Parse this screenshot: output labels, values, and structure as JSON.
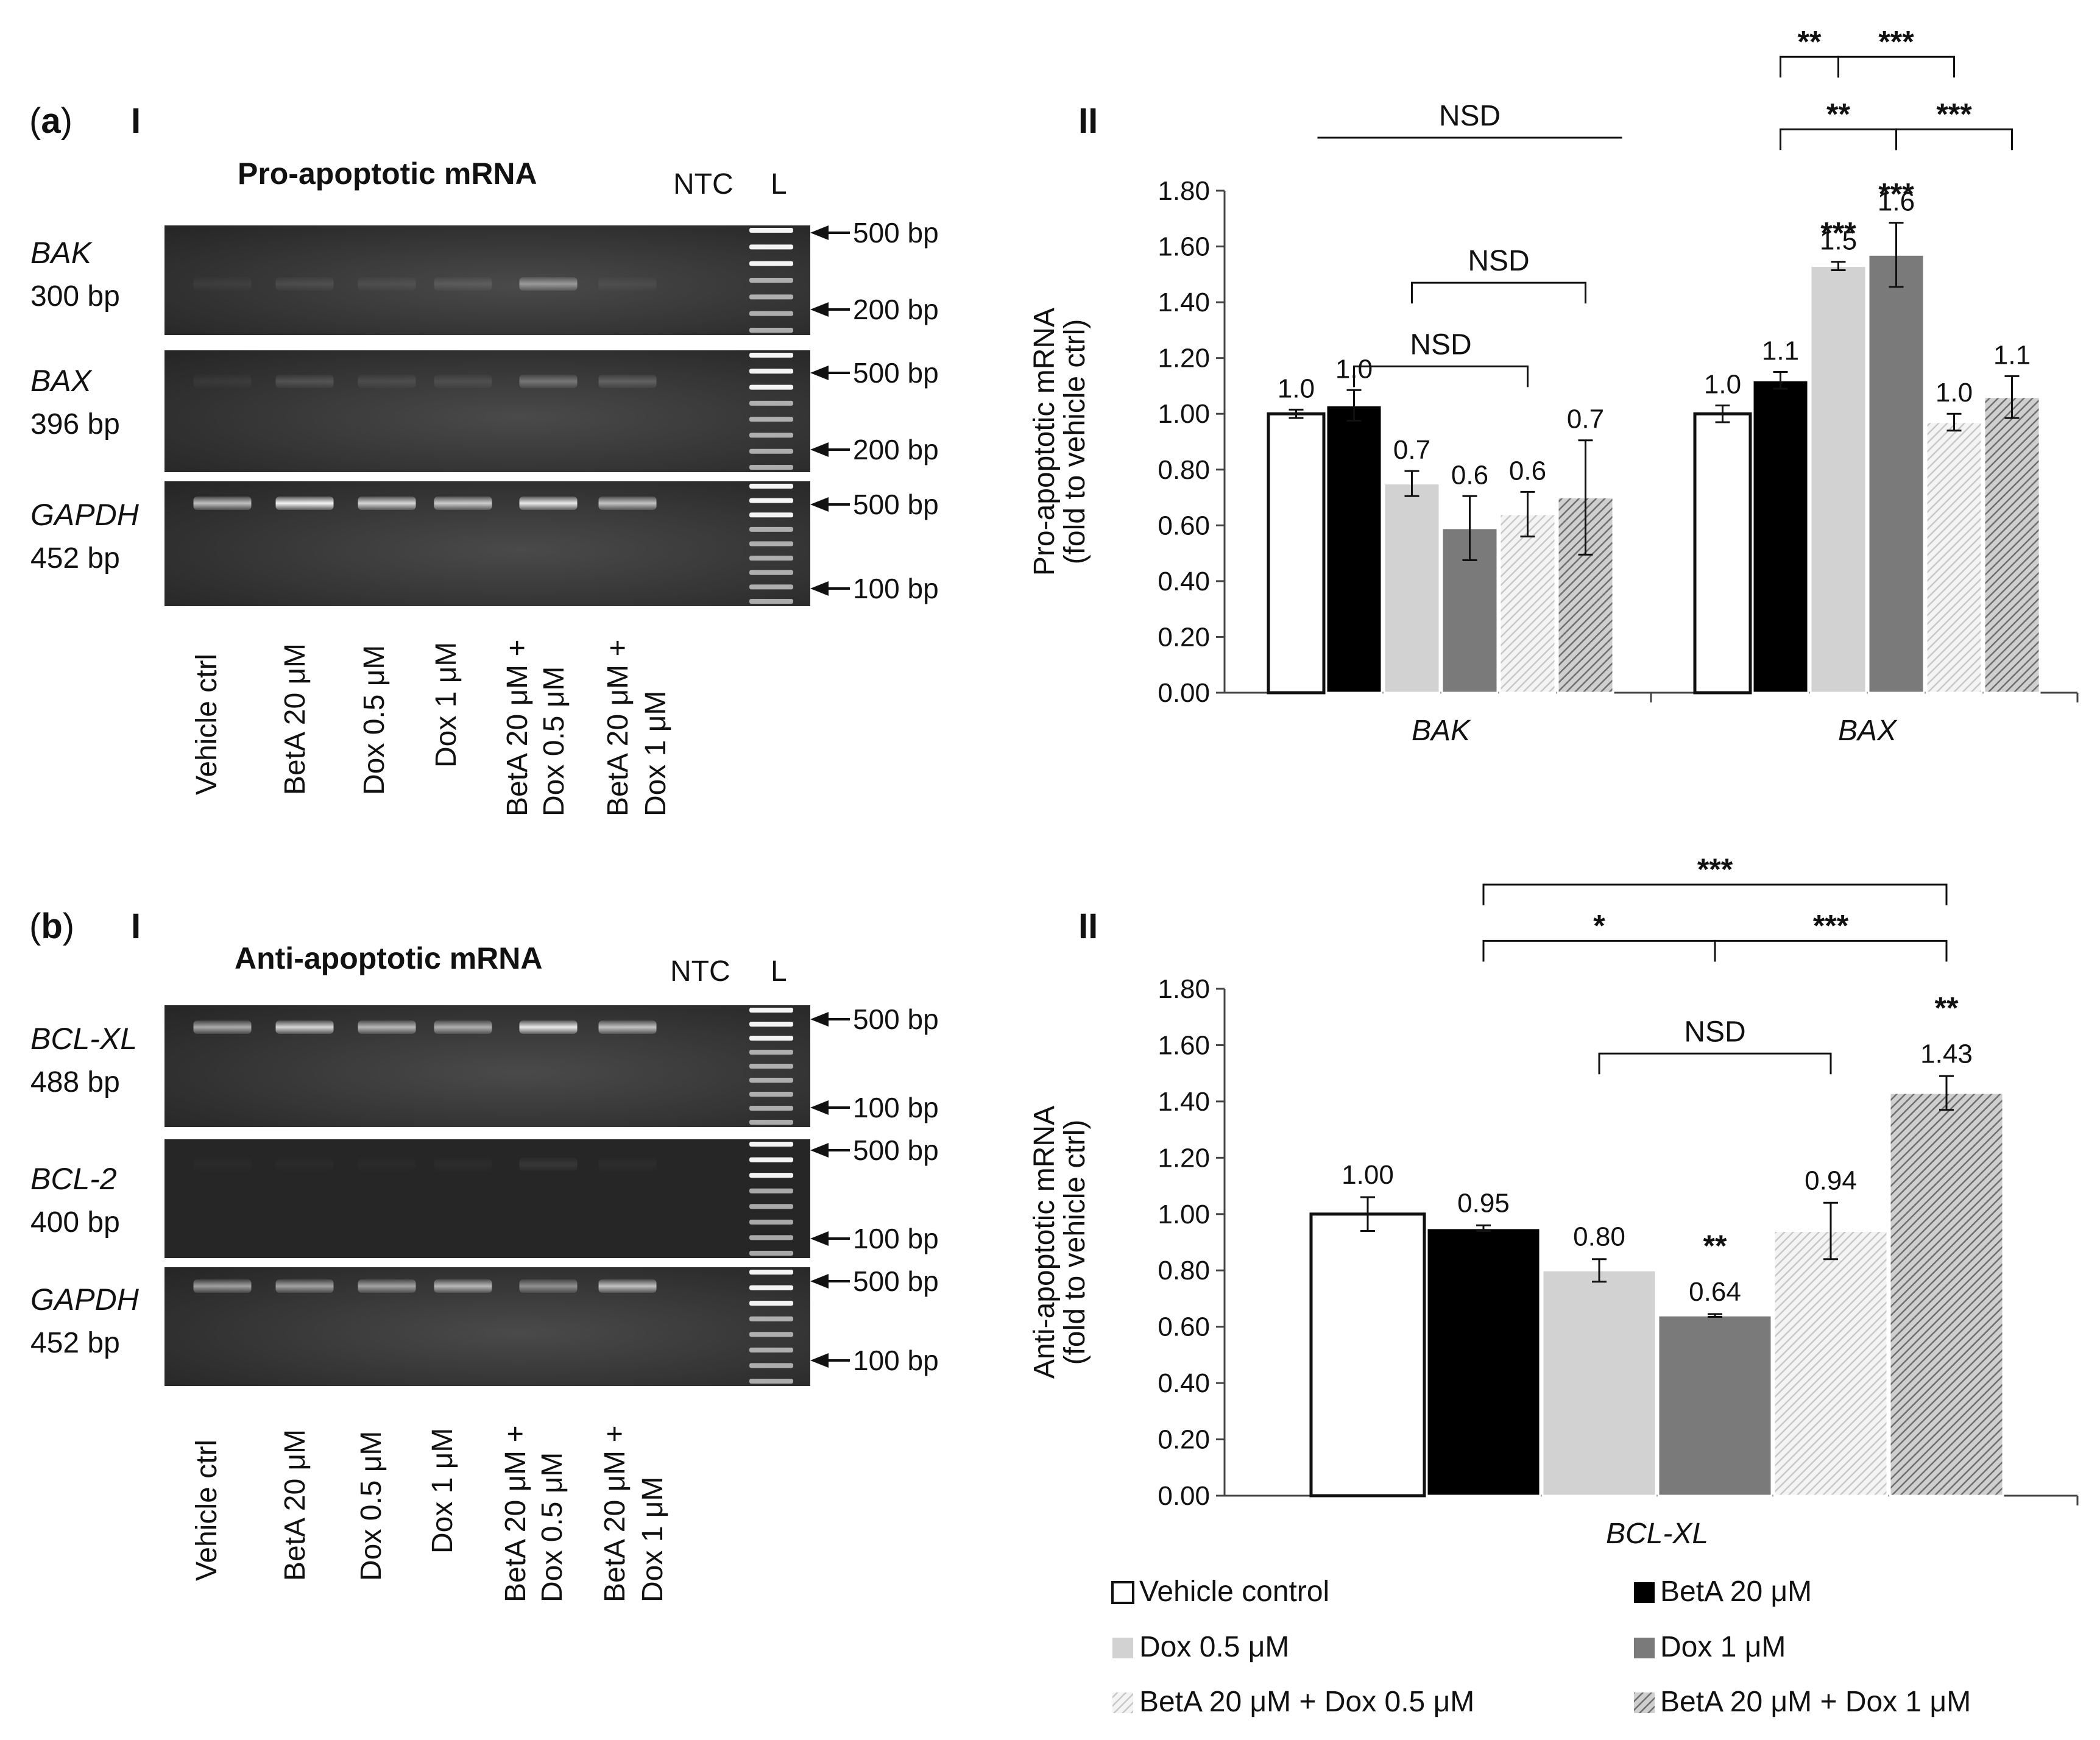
{
  "panel_a": {
    "letter": "a",
    "roman_left": "I",
    "roman_right": "II",
    "gel_title": "Pro-apoptotic mRNA",
    "ntc": "NTC",
    "ladder": "L",
    "gel_rows": [
      {
        "gene": "BAK",
        "size": "300 bp",
        "marker_top": "500 bp",
        "marker_bottom": "200 bp"
      },
      {
        "gene": "BAX",
        "size": "396 bp",
        "marker_top": "500 bp",
        "marker_bottom": "200 bp"
      },
      {
        "gene": "GAPDH",
        "size": "452 bp",
        "marker_top": "500 bp",
        "marker_bottom": "100 bp"
      }
    ],
    "lanes": [
      [
        "Vehicle ctrl"
      ],
      [
        "BetA 20 μM"
      ],
      [
        "Dox 0.5 μM"
      ],
      [
        "Dox 1 μM"
      ],
      [
        "BetA 20 μM +",
        "Dox 0.5 μM"
      ],
      [
        "BetA 20 μM +",
        "Dox 1 μM"
      ]
    ],
    "band_intensity": {
      "BAK": [
        0.05,
        0.1,
        0.08,
        0.12,
        0.45,
        0.06
      ],
      "BAX": [
        0.05,
        0.15,
        0.1,
        0.1,
        0.3,
        0.2
      ],
      "GAPDH": [
        0.7,
        0.95,
        0.8,
        0.75,
        0.9,
        0.7
      ]
    }
  },
  "panel_b": {
    "letter": "b",
    "roman_left": "I",
    "roman_right": "II",
    "gel_title": "Anti-apoptotic mRNA",
    "ntc": "NTC",
    "ladder": "L",
    "gel_rows": [
      {
        "gene": "BCL-XL",
        "size": "488 bp",
        "marker_top": "500 bp",
        "marker_bottom": "100 bp"
      },
      {
        "gene": "BCL-2",
        "size": "400 bp",
        "marker_top": "500 bp",
        "marker_bottom": "100 bp"
      },
      {
        "gene": "GAPDH",
        "size": "452 bp",
        "marker_top": "500 bp",
        "marker_bottom": "100 bp"
      }
    ],
    "lanes": [
      [
        "Vehicle ctrl"
      ],
      [
        "BetA 20 μM"
      ],
      [
        "Dox 0.5 μM"
      ],
      [
        "Dox 1 μM"
      ],
      [
        "BetA 20 μM +",
        "Dox 0.5 μM"
      ],
      [
        "BetA 20 μM +",
        "Dox 1 μM"
      ]
    ],
    "band_intensity": {
      "BCL-XL": [
        0.6,
        0.8,
        0.65,
        0.6,
        0.9,
        0.7
      ],
      "BCL-2": [
        0.02,
        0.02,
        0.02,
        0.03,
        0.08,
        0.03
      ],
      "GAPDH": [
        0.55,
        0.55,
        0.55,
        0.65,
        0.45,
        0.7
      ]
    }
  },
  "legend": [
    {
      "label": "Vehicle control",
      "fill": "#ffffff",
      "pattern": "none"
    },
    {
      "label": "BetA 20 μM",
      "fill": "#000000",
      "pattern": "none"
    },
    {
      "label": "Dox 0.5 μM",
      "fill": "#d2d2d2",
      "pattern": "none"
    },
    {
      "label": "Dox 1 μM",
      "fill": "#7a7a7a",
      "pattern": "none"
    },
    {
      "label": "BetA 20 μM + Dox 0.5 μM",
      "fill": "#ececec",
      "pattern": "light-hatch"
    },
    {
      "label": "BetA 20 μM + Dox 1 μM",
      "fill": "#9a9a9a",
      "pattern": "dark-hatch"
    }
  ],
  "chart_data": [
    {
      "type": "bar",
      "ylabel": "Pro-apoptotic mRNA (fold to vehicle ctrl)",
      "ylabel_lines": [
        "Pro-apoptotic mRNA",
        "(fold to vehicle ctrl)"
      ],
      "ylim": [
        0,
        1.8
      ],
      "yticks": [
        "0.00",
        "0.20",
        "0.40",
        "0.60",
        "0.80",
        "1.00",
        "1.20",
        "1.40",
        "1.60",
        "1.80"
      ],
      "categories": [
        "BAK",
        "BAX"
      ],
      "series": [
        {
          "name": "Vehicle control",
          "values": [
            1.0,
            1.0
          ],
          "errors": [
            0.015,
            0.03
          ],
          "labels": [
            "1.0",
            "1.0"
          ]
        },
        {
          "name": "BetA 20 μM",
          "values": [
            1.03,
            1.12
          ],
          "errors": [
            0.055,
            0.03
          ],
          "labels": [
            "1.0",
            "1.1"
          ]
        },
        {
          "name": "Dox 0.5 μM",
          "values": [
            0.75,
            1.53
          ],
          "errors": [
            0.045,
            0.015
          ],
          "labels": [
            "0.7",
            "1.5"
          ]
        },
        {
          "name": "Dox 1 μM",
          "values": [
            0.59,
            1.57
          ],
          "errors": [
            0.115,
            0.115
          ],
          "labels": [
            "0.6",
            "1.6"
          ]
        },
        {
          "name": "BetA 20 μM + Dox 0.5 μM",
          "values": [
            0.64,
            0.97
          ],
          "errors": [
            0.08,
            0.03
          ],
          "labels": [
            "0.6",
            "1.0"
          ]
        },
        {
          "name": "BetA 20 μM + Dox 1 μM",
          "values": [
            0.7,
            1.06
          ],
          "errors": [
            0.205,
            0.075
          ],
          "labels": [
            "0.7",
            "1.1"
          ]
        }
      ],
      "bar_stars": [
        {
          "category": 1,
          "series": 2,
          "text": "***"
        },
        {
          "category": 1,
          "series": 3,
          "text": "***"
        }
      ],
      "brackets": [
        {
          "type": "line",
          "from": [
            0,
            1
          ],
          "to": [
            0,
            5
          ],
          "text": "NSD",
          "level": 1.99
        },
        {
          "type": "bracket",
          "from": [
            0,
            2
          ],
          "to": [
            0,
            5
          ],
          "text": "NSD",
          "level": 1.47
        },
        {
          "type": "bracket",
          "from": [
            0,
            1
          ],
          "to": [
            0,
            4
          ],
          "text": "NSD",
          "level": 1.17
        },
        {
          "type": "bracket",
          "from": [
            1,
            1
          ],
          "to": [
            1,
            3
          ],
          "text": "**",
          "level": 2.02
        },
        {
          "type": "bracket",
          "from": [
            1,
            3
          ],
          "to": [
            1,
            5
          ],
          "text": "***",
          "level": 2.02
        },
        {
          "type": "bracket",
          "from": [
            1,
            1
          ],
          "to": [
            1,
            2
          ],
          "text": "**",
          "level": 2.28
        },
        {
          "type": "bracket",
          "from": [
            1,
            2
          ],
          "to": [
            1,
            4
          ],
          "text": "***",
          "level": 2.28
        }
      ]
    },
    {
      "type": "bar",
      "ylabel": "Anti-apoptotic mRNA (fold to vehicle ctrl)",
      "ylabel_lines": [
        "Anti-apoptotic mRNA",
        "(fold to vehicle ctrl)"
      ],
      "ylim": [
        0,
        1.8
      ],
      "yticks": [
        "0.00",
        "0.20",
        "0.40",
        "0.60",
        "0.80",
        "1.00",
        "1.20",
        "1.40",
        "1.60",
        "1.80"
      ],
      "categories": [
        "BCL-XL"
      ],
      "series": [
        {
          "name": "Vehicle control",
          "values": [
            1.0
          ],
          "errors": [
            0.06
          ],
          "labels": [
            "1.00"
          ]
        },
        {
          "name": "BetA 20 μM",
          "values": [
            0.95
          ],
          "errors": [
            0.01
          ],
          "labels": [
            "0.95"
          ]
        },
        {
          "name": "Dox 0.5 μM",
          "values": [
            0.8
          ],
          "errors": [
            0.04
          ],
          "labels": [
            "0.80"
          ]
        },
        {
          "name": "Dox 1 μM",
          "values": [
            0.64
          ],
          "errors": [
            0.005
          ],
          "labels": [
            "0.64"
          ]
        },
        {
          "name": "BetA 20 μM + Dox 0.5 μM",
          "values": [
            0.94
          ],
          "errors": [
            0.1
          ],
          "labels": [
            "0.94"
          ]
        },
        {
          "name": "BetA 20 μM + Dox 1 μM",
          "values": [
            1.43
          ],
          "errors": [
            0.06
          ],
          "labels": [
            "1.43"
          ]
        }
      ],
      "bar_stars": [
        {
          "category": 0,
          "series": 3,
          "text": "**"
        },
        {
          "category": 0,
          "series": 5,
          "text": "**"
        }
      ],
      "brackets": [
        {
          "type": "bracket",
          "from": [
            0,
            1
          ],
          "to": [
            0,
            5
          ],
          "text": "***",
          "level": 2.17
        },
        {
          "type": "bracket",
          "from": [
            0,
            1
          ],
          "to": [
            0,
            3
          ],
          "text": "*",
          "level": 1.97
        },
        {
          "type": "bracket",
          "from": [
            0,
            3
          ],
          "to": [
            0,
            5
          ],
          "text": "***",
          "level": 1.97
        },
        {
          "type": "bracket",
          "from": [
            0,
            2
          ],
          "to": [
            0,
            4
          ],
          "text": "NSD",
          "level": 1.57
        }
      ]
    }
  ]
}
